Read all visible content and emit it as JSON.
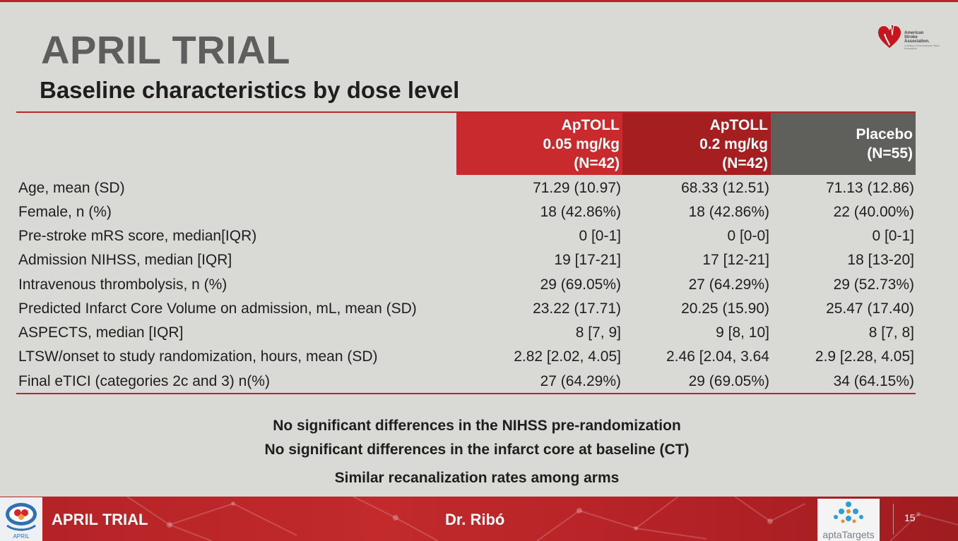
{
  "slide": {
    "title": "APRIL TRIAL",
    "subtitle": "Baseline characteristics by dose level",
    "accent_color": "#b8262b"
  },
  "logo_top_right": {
    "name_line1": "American",
    "name_line2": "Stroke",
    "name_line3": "Association.",
    "tagline": "A division of the American Heart Association"
  },
  "table": {
    "columns": [
      {
        "line1": "ApTOLL",
        "line2": "0.05 mg/kg",
        "line3": "(N=42)",
        "color": "#c82a2d"
      },
      {
        "line1": "ApTOLL",
        "line2": "0.2 mg/kg",
        "line3": "(N=42)",
        "color": "#a51f20"
      },
      {
        "line1": "",
        "line2": "Placebo",
        "line3": "(N=55)",
        "color": "#5f605c"
      }
    ],
    "rows": [
      {
        "label": "Age, mean (SD)",
        "v1": "71.29 (10.97)",
        "v2": "68.33 (12.51)",
        "v3": "71.13 (12.86)"
      },
      {
        "label": "Female, n (%)",
        "v1": "18 (42.86%)",
        "v2": "18 (42.86%)",
        "v3": "22 (40.00%)"
      },
      {
        "label": "Pre-stroke mRS score, median[IQR)",
        "v1": "0 [0-1]",
        "v2": "0 [0-0]",
        "v3": "0 [0-1]"
      },
      {
        "label": "Admission NIHSS, median [IQR]",
        "v1": "19 [17-21]",
        "v2": "17 [12-21]",
        "v3": "18 [13-20]"
      },
      {
        "label": "Intravenous thrombolysis, n (%)",
        "v1": "29 (69.05%)",
        "v2": "27 (64.29%)",
        "v3": "29 (52.73%)"
      },
      {
        "label": "Predicted Infarct Core Volume on admission, mL, mean (SD)",
        "v1": "23.22 (17.71)",
        "v2": "20.25 (15.90)",
        "v3": "25.47 (17.40)"
      },
      {
        "label": "ASPECTS, median [IQR]",
        "v1": "8 [7, 9]",
        "v2": "9 [8, 10]",
        "v3": "8 [7, 8]"
      },
      {
        "label": "LTSW/onset to study randomization, hours, mean (SD)",
        "v1": "2.82 [2.02, 4.05]",
        "v2": "2.46 [2.04, 3.64",
        "v3": "2.9 [2.28, 4.05]"
      },
      {
        "label": "Final eTICI (categories 2c and 3) n(%)",
        "v1": "27 (64.29%)",
        "v2": "29 (69.05%)",
        "v3": "34 (64.15%)"
      }
    ]
  },
  "notes": [
    "No significant differences in the NIHSS pre-randomization",
    "No significant differences in the infarct core at baseline (CT)",
    "Similar recanalization rates among arms"
  ],
  "footer": {
    "left_logo_text": "APRIL",
    "title": "APRIL TRIAL",
    "author": "Dr. Ribó",
    "right_logo_text": "aptaTargets",
    "page_number": "15"
  }
}
